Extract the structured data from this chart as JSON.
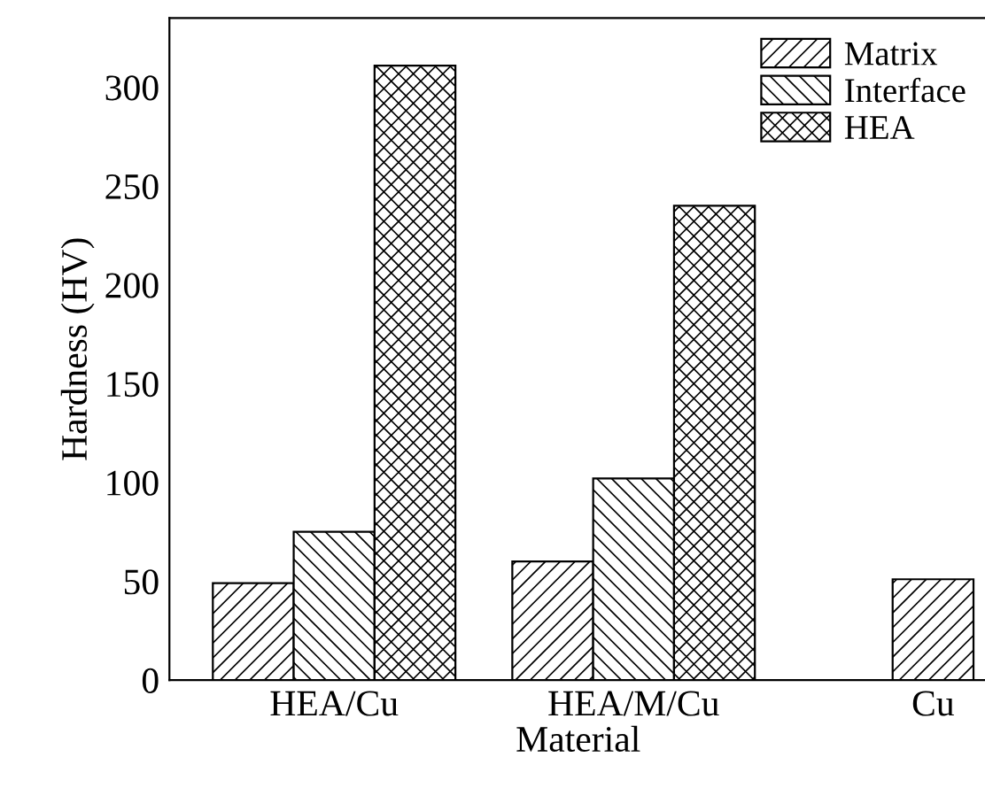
{
  "chart_data": {
    "type": "bar",
    "xlabel": "Material",
    "ylabel": "Hardness (HV)",
    "categories": [
      "HEA/Cu",
      "HEA/M/Cu",
      "Cu"
    ],
    "series": [
      {
        "name": "Matrix",
        "color": "#000000",
        "values": [
          49,
          60,
          51
        ]
      },
      {
        "name": "Interface",
        "color": "#000000",
        "values": [
          75,
          102,
          null
        ]
      },
      {
        "name": "HEA",
        "color": "#000000",
        "values": [
          311,
          240,
          null
        ]
      }
    ],
    "ylim": [
      0,
      335
    ],
    "yticks": [
      0,
      50,
      100,
      150,
      200,
      250,
      300
    ],
    "grid": false,
    "legend": "top right"
  }
}
